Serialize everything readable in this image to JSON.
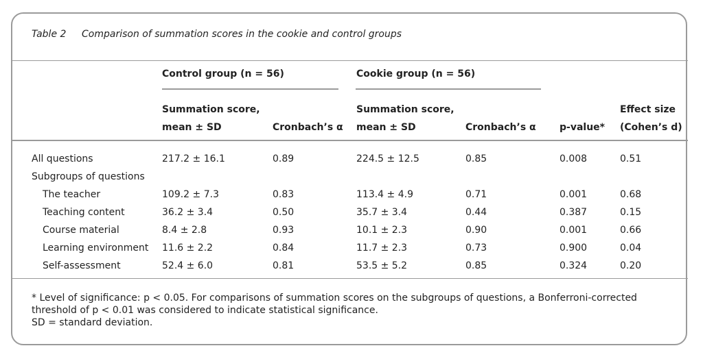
{
  "caption": {
    "label": "Table 2",
    "title": "Comparison of summation scores in the cookie and control groups"
  },
  "table": {
    "groups": [
      "Control group (n = 56)",
      "Cookie group (n = 56)"
    ],
    "columns": [
      [
        "Summation score,",
        "mean ± SD"
      ],
      [
        "Cronbach’s α"
      ],
      [
        "Summation score,",
        "mean ± SD"
      ],
      [
        "Cronbach’s α"
      ],
      [
        "p-value*"
      ],
      [
        "Effect size",
        "(Cohen’s d)"
      ]
    ],
    "rows": [
      [
        "All questions",
        "217.2 ± 16.1",
        "0.89",
        "224.5 ± 12.5",
        "0.85",
        "0.008",
        "0.51"
      ],
      [
        "Subgroups of questions"
      ],
      [
        "The teacher",
        "109.2 ± 7.3",
        "0.83",
        "113.4 ± 4.9",
        "0.71",
        "0.001",
        "0.68"
      ],
      [
        "Teaching content",
        "36.2 ± 3.4",
        "0.50",
        "35.7 ± 3.4",
        "0.44",
        "0.387",
        "0.15"
      ],
      [
        "Course material",
        "8.4 ± 2.8",
        "0.93",
        "10.1 ± 2.3",
        "0.90",
        "0.001",
        "0.66"
      ],
      [
        "Learning environment",
        "11.6 ± 2.2",
        "0.84",
        "11.7 ± 2.3",
        "0.73",
        "0.900",
        "0.04"
      ],
      [
        "Self-assessment",
        "52.4 ± 6.0",
        "0.81",
        "53.5 ± 5.2",
        "0.85",
        "0.324",
        "0.20"
      ]
    ]
  },
  "footnotes": [
    "* Level of significance: p < 0.05. For comparisons of summation scores on the subgroups of questions, a Bonferroni-corrected threshold of p < 0.01 was considered to indicate statistical significance.",
    "SD = standard deviation."
  ]
}
